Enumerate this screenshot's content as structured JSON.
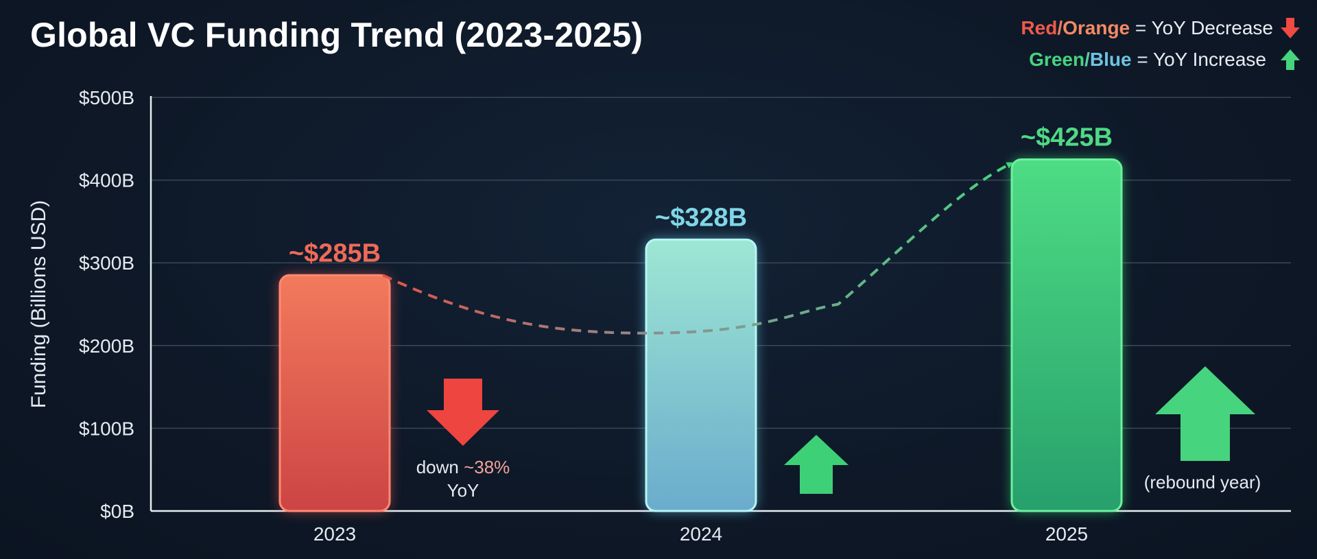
{
  "title": "Global VC Funding Trend (2023-2025)",
  "legend": {
    "decrease": {
      "key_a": "Red",
      "sep": "/",
      "key_b": "Orange",
      "rest": " = YoY Decrease"
    },
    "increase": {
      "key_a": "Green",
      "sep": "/",
      "key_b": "Blue",
      "rest": " = YoY Increase"
    }
  },
  "colors": {
    "background": "#0f1a29",
    "red": "#ef5a4b",
    "orange": "#f48a64",
    "green": "#46d47e",
    "blue": "#6ec3e0",
    "grid": "#3a4757"
  },
  "chart_data": {
    "type": "bar",
    "title": "Global VC Funding Trend (2023-2025)",
    "xlabel": "",
    "ylabel": "Funding (Billions USD)",
    "ylim": [
      0,
      500
    ],
    "yticks": [
      0,
      100,
      200,
      300,
      400,
      500
    ],
    "ytick_labels": [
      "$0B",
      "$100B",
      "$200B",
      "$300B",
      "$400B",
      "$500B"
    ],
    "categories": [
      "2023",
      "2024",
      "2025"
    ],
    "values": [
      285,
      328,
      425
    ],
    "data_labels": [
      "~$285B",
      "~$328B",
      "~$425B"
    ],
    "bar_colors": [
      "red-orange",
      "teal-blue",
      "green"
    ],
    "grid": true,
    "legend_position": "top-right",
    "trend_line": {
      "style": "dashed",
      "from": "2023",
      "to": "2025",
      "min_value": 215
    },
    "annotations": [
      {
        "category": "2023",
        "direction": "down",
        "text_line1_a": "down ",
        "text_line1_b": "~38%",
        "text_line2": "YoY"
      },
      {
        "category": "2024",
        "direction": "up"
      },
      {
        "category": "2025",
        "direction": "up",
        "text_line1": "(rebound year)"
      }
    ]
  }
}
